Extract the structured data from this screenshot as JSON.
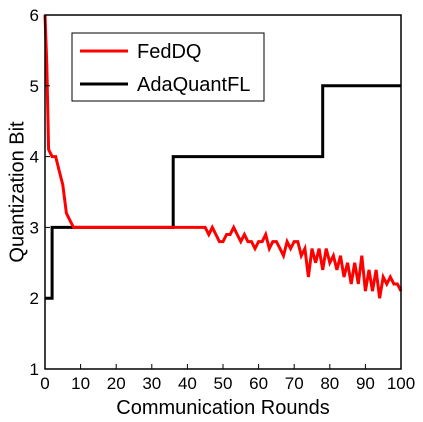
{
  "chart_data": {
    "type": "line",
    "xlabel": "Communication  Rounds",
    "ylabel": "Quantization  Bit",
    "xlim": [
      0,
      100
    ],
    "ylim": [
      1,
      6
    ],
    "x_ticks": [
      "0",
      "10",
      "20",
      "30",
      "40",
      "50",
      "60",
      "70",
      "80",
      "90",
      "100"
    ],
    "y_ticks": [
      "1",
      "2",
      "3",
      "4",
      "5",
      "6"
    ],
    "grid": false,
    "legend_position": "top-left",
    "series": [
      {
        "name": "FedDQ",
        "color": "#ff0000",
        "x": [
          0,
          0.5,
          1,
          2,
          3,
          4,
          5,
          6,
          7,
          8,
          9,
          10,
          15,
          20,
          25,
          30,
          35,
          40,
          44,
          45,
          46,
          47,
          48,
          49,
          50,
          51,
          52,
          53,
          54,
          55,
          56,
          57,
          58,
          59,
          60,
          61,
          62,
          63,
          64,
          65,
          66,
          67,
          68,
          69,
          70,
          71,
          72,
          73,
          74,
          75,
          76,
          77,
          78,
          79,
          80,
          81,
          82,
          83,
          84,
          85,
          86,
          87,
          88,
          89,
          90,
          91,
          92,
          93,
          94,
          95,
          96,
          97,
          98,
          99,
          100
        ],
        "values": [
          6.0,
          5.3,
          4.1,
          4.0,
          4.0,
          3.8,
          3.6,
          3.2,
          3.1,
          3.0,
          3.0,
          3.0,
          3.0,
          3.0,
          3.0,
          3.0,
          3.0,
          3.0,
          3.0,
          3.0,
          2.9,
          3.0,
          2.9,
          2.8,
          2.8,
          2.9,
          2.9,
          3.0,
          2.9,
          2.8,
          2.9,
          2.8,
          2.8,
          2.7,
          2.8,
          2.8,
          2.9,
          2.7,
          2.8,
          2.8,
          2.7,
          2.6,
          2.8,
          2.7,
          2.8,
          2.8,
          2.6,
          2.7,
          2.3,
          2.7,
          2.5,
          2.7,
          2.4,
          2.7,
          2.5,
          2.6,
          2.4,
          2.6,
          2.3,
          2.5,
          2.2,
          2.5,
          2.2,
          2.6,
          2.1,
          2.4,
          2.1,
          2.4,
          2.0,
          2.3,
          2.2,
          2.3,
          2.2,
          2.2,
          2.1
        ],
        "shape": "linear"
      },
      {
        "name": "AdaQuantFL",
        "color": "#000000",
        "x": [
          0,
          2,
          2,
          36,
          36,
          78,
          78,
          100
        ],
        "values": [
          2,
          2,
          3,
          3,
          4,
          4,
          5,
          5
        ],
        "shape": "step"
      }
    ]
  }
}
